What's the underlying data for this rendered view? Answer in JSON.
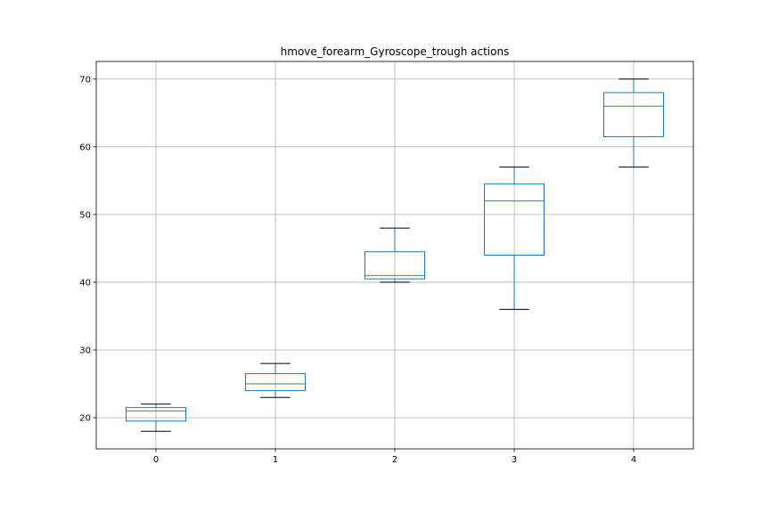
{
  "chart_data": {
    "type": "box",
    "title": "hmove_forearm_Gyroscope_trough actions",
    "xlabel": "",
    "ylabel": "",
    "categories": [
      "0",
      "1",
      "2",
      "3",
      "4"
    ],
    "boxes": [
      {
        "category": "0",
        "min": 18,
        "q1": 19.5,
        "median": 21,
        "q3": 21.5,
        "max": 22
      },
      {
        "category": "1",
        "min": 23,
        "q1": 24,
        "median": 25,
        "q3": 26.5,
        "max": 28
      },
      {
        "category": "2",
        "min": 40,
        "q1": 40.5,
        "median": 41,
        "q3": 44.5,
        "max": 48
      },
      {
        "category": "3",
        "min": 36,
        "q1": 44,
        "median": 52,
        "q3": 54.5,
        "max": 57
      },
      {
        "category": "4",
        "min": 57,
        "q1": 61.5,
        "median": 66,
        "q3": 68,
        "max": 70
      }
    ],
    "yticks": [
      20,
      30,
      40,
      50,
      60,
      70
    ],
    "ylim": [
      15.4,
      72.6
    ],
    "grid": true,
    "colors": {
      "box": "#1f77b4",
      "median": "#2ca02c",
      "cap": "#000000",
      "grid": "#b0b0b0"
    }
  }
}
